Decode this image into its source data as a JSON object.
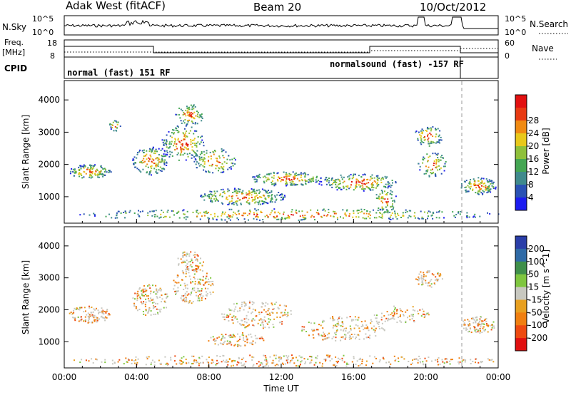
{
  "header": {
    "radar": "Adak West (fitACF)",
    "beam": "Beam 20",
    "date": "10/Oct/2012"
  },
  "panels": {
    "sky_noise": {
      "label": "N.Sky",
      "ticks": [
        "10^5",
        "10^0"
      ]
    },
    "search_noise": {
      "label": "N.Search",
      "ticks": [
        "10^5",
        "10^0"
      ]
    },
    "freq": {
      "label_line1": "Freq.",
      "label_line2": "[MHz]",
      "ticks": [
        "18",
        "8"
      ]
    },
    "nave": {
      "label": "Nave",
      "ticks": [
        "60",
        "0"
      ]
    },
    "cpid": {
      "label": "CPID",
      "modes": [
        "normal (fast) 151 RF",
        "normalsound (fast) -157 RF"
      ]
    }
  },
  "colors": {
    "power": [
      "#1c1cf0",
      "#2a52b4",
      "#3f8a8c",
      "#44a653",
      "#8fc03a",
      "#e8c81a",
      "#f08a12",
      "#e83a12",
      "#e21010"
    ],
    "velocity": [
      "#2a3ea8",
      "#2f6aa6",
      "#3f8f4a",
      "#7fc63f",
      "#c8c8c0",
      "#e8a020",
      "#f07f10",
      "#ee4a10",
      "#e01010"
    ]
  },
  "chart_data": [
    {
      "type": "heatmap",
      "title": "Power",
      "ylabel": "Slant Range [km]",
      "xlabel": "Time UT",
      "x_ticks": [
        "00:00",
        "04:00",
        "08:00",
        "12:00",
        "16:00",
        "20:00",
        "00:00"
      ],
      "y_ticks": [
        1000,
        2000,
        3000,
        4000
      ],
      "ylim": [
        180,
        4600
      ],
      "colorbar": {
        "label": "Power [dB]",
        "ticks": [
          4,
          8,
          12,
          16,
          20,
          24,
          28
        ]
      }
    },
    {
      "type": "heatmap",
      "title": "Velocity",
      "ylabel": "Slant Range [km]",
      "xlabel": "Time UT",
      "x_ticks": [
        "00:00",
        "04:00",
        "08:00",
        "12:00",
        "16:00",
        "20:00",
        "00:00"
      ],
      "y_ticks": [
        1000,
        2000,
        3000,
        4000
      ],
      "ylim": [
        180,
        4600
      ],
      "colorbar": {
        "label": "Velocity [m s^-1]",
        "ticks": [
          200,
          100,
          50,
          15,
          -15,
          -50,
          -100,
          -200
        ]
      }
    }
  ]
}
